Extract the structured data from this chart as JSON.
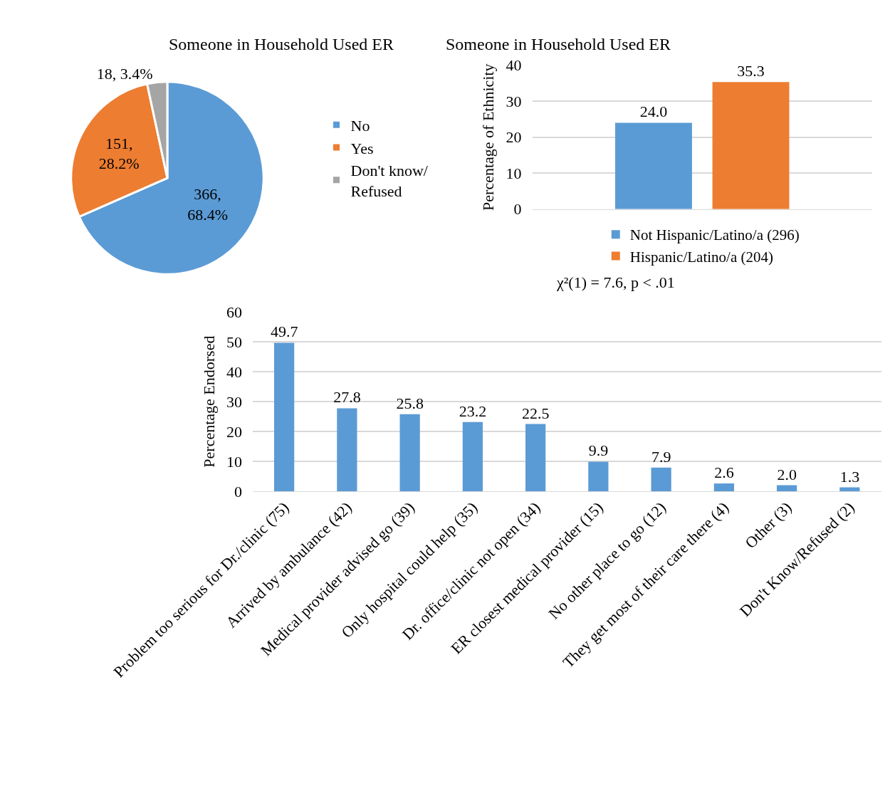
{
  "chart_data": [
    {
      "type": "pie",
      "title": "Someone in Household Used ER",
      "categories": [
        "No",
        "Yes",
        "Don't know/ Refused"
      ],
      "values": [
        366,
        151,
        18
      ],
      "colors": [
        "#5b9bd5",
        "#ed7d31",
        "#a5a5a5"
      ],
      "value_labels": [
        "366,\n68.4%",
        "151,\n28.2%",
        "18, 3.4%"
      ],
      "legend": "right"
    },
    {
      "type": "bar",
      "title": "Someone in Household Used ER",
      "ylabel": "Percentage of Ethnicity",
      "categories": [
        null
      ],
      "series": [
        {
          "name": "Not Hispanic/Latino/a (296)",
          "color": "#5b9bd5",
          "values": [
            24.0
          ],
          "value_labels": [
            "24.0"
          ]
        },
        {
          "name": "Hispanic/Latino/a (204)",
          "color": "#ed7d31",
          "values": [
            35.3
          ],
          "value_labels": [
            "35.3"
          ]
        }
      ],
      "ylim": [
        0,
        40
      ],
      "yticks": [
        0,
        10,
        20,
        30,
        40
      ],
      "grid": "y",
      "legend": "bottom",
      "annotations": [
        "χ²(1) = 7.6, p < .01"
      ]
    },
    {
      "type": "bar",
      "ylabel": "Percentage Endorsed",
      "categories": [
        "Problem too serious for Dr./clinic (75)",
        "Arrived by ambulance (42)",
        "Medical provider advised go (39)",
        "Only hospital could help (35)",
        "Dr. office/clinic not open (34)",
        "ER closest medical provider (15)",
        "No other place to go (12)",
        "They get most of their care there (4)",
        "Other (3)",
        "Don't Know/Refused (2)"
      ],
      "values": [
        49.7,
        27.8,
        25.8,
        23.2,
        22.5,
        9.9,
        7.9,
        2.6,
        2.0,
        1.3
      ],
      "value_labels": [
        "49.7",
        "27.8",
        "25.8",
        "23.2",
        "22.5",
        "9.9",
        "7.9",
        "2.6",
        "2.0",
        "1.3"
      ],
      "color": "#5b9bd5",
      "ylim": [
        0,
        60
      ],
      "yticks": [
        0,
        10,
        20,
        30,
        40,
        50,
        60
      ],
      "grid": "y"
    }
  ]
}
